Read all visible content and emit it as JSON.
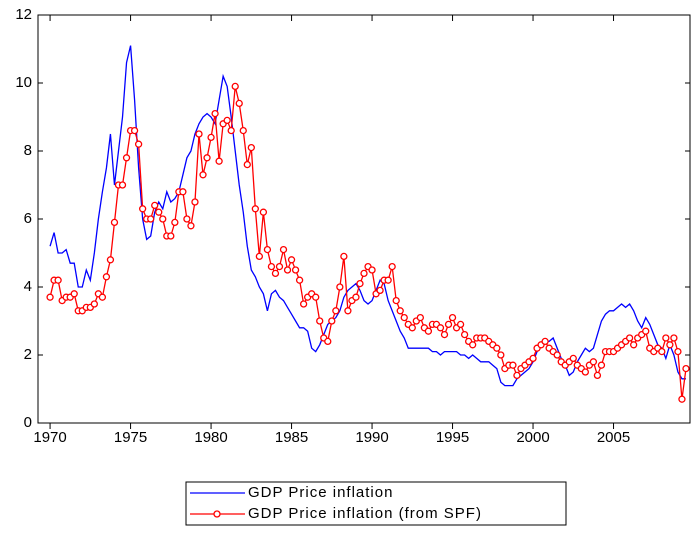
{
  "chart_data": {
    "type": "line",
    "x": [
      1970,
      1970.25,
      1970.5,
      1970.75,
      1971,
      1971.25,
      1971.5,
      1971.75,
      1972,
      1972.25,
      1972.5,
      1972.75,
      1973,
      1973.25,
      1973.5,
      1973.75,
      1974,
      1974.25,
      1974.5,
      1974.75,
      1975,
      1975.25,
      1975.5,
      1975.75,
      1976,
      1976.25,
      1976.5,
      1976.75,
      1977,
      1977.25,
      1977.5,
      1977.75,
      1978,
      1978.25,
      1978.5,
      1978.75,
      1979,
      1979.25,
      1979.5,
      1979.75,
      1980,
      1980.25,
      1980.5,
      1980.75,
      1981,
      1981.25,
      1981.5,
      1981.75,
      1982,
      1982.25,
      1982.5,
      1982.75,
      1983,
      1983.25,
      1983.5,
      1983.75,
      1984,
      1984.25,
      1984.5,
      1984.75,
      1985,
      1985.25,
      1985.5,
      1985.75,
      1986,
      1986.25,
      1986.5,
      1986.75,
      1987,
      1987.25,
      1987.5,
      1987.75,
      1988,
      1988.25,
      1988.5,
      1988.75,
      1989,
      1989.25,
      1989.5,
      1989.75,
      1990,
      1990.25,
      1990.5,
      1990.75,
      1991,
      1991.25,
      1991.5,
      1991.75,
      1992,
      1992.25,
      1992.5,
      1992.75,
      1993,
      1993.25,
      1993.5,
      1993.75,
      1994,
      1994.25,
      1994.5,
      1994.75,
      1995,
      1995.25,
      1995.5,
      1995.75,
      1996,
      1996.25,
      1996.5,
      1996.75,
      1997,
      1997.25,
      1997.5,
      1997.75,
      1998,
      1998.25,
      1998.5,
      1998.75,
      1999,
      1999.25,
      1999.5,
      1999.75,
      2000,
      2000.25,
      2000.5,
      2000.75,
      2001,
      2001.25,
      2001.5,
      2001.75,
      2002,
      2002.25,
      2002.5,
      2002.75,
      2003,
      2003.25,
      2003.5,
      2003.75,
      2004,
      2004.25,
      2004.5,
      2004.75,
      2005,
      2005.25,
      2005.5,
      2005.75,
      2006,
      2006.25,
      2006.5,
      2006.75,
      2007,
      2007.25,
      2007.5,
      2007.75,
      2008,
      2008.25,
      2008.5,
      2008.75,
      2009,
      2009.25,
      2009.5
    ],
    "series": [
      {
        "name": "GDP Price inflation",
        "color": "#0000ff",
        "marker": false,
        "values": [
          5.2,
          5.6,
          5.0,
          5.0,
          5.1,
          4.7,
          4.7,
          4.0,
          4.0,
          4.5,
          4.2,
          5.0,
          6.0,
          6.8,
          7.5,
          8.5,
          7.0,
          8.0,
          9.0,
          10.6,
          11.1,
          9.5,
          7.5,
          6.0,
          5.4,
          5.5,
          6.2,
          6.5,
          6.3,
          6.8,
          6.5,
          6.6,
          6.8,
          7.3,
          7.8,
          8.0,
          8.5,
          8.8,
          9.0,
          9.1,
          9.0,
          8.8,
          9.5,
          10.2,
          9.9,
          9.0,
          8.0,
          7.0,
          6.2,
          5.2,
          4.5,
          4.3,
          4.0,
          3.8,
          3.3,
          3.8,
          3.9,
          3.7,
          3.6,
          3.4,
          3.2,
          3.0,
          2.8,
          2.8,
          2.7,
          2.2,
          2.1,
          2.3,
          2.6,
          2.9,
          3.0,
          3.1,
          3.3,
          3.7,
          3.9,
          4.0,
          4.1,
          3.9,
          3.6,
          3.5,
          3.6,
          3.9,
          4.2,
          4.1,
          3.6,
          3.3,
          3.0,
          2.7,
          2.5,
          2.2,
          2.2,
          2.2,
          2.2,
          2.2,
          2.2,
          2.1,
          2.1,
          2.0,
          2.1,
          2.1,
          2.1,
          2.1,
          2.0,
          2.0,
          1.9,
          2.0,
          1.9,
          1.8,
          1.8,
          1.8,
          1.7,
          1.6,
          1.2,
          1.1,
          1.1,
          1.1,
          1.3,
          1.4,
          1.5,
          1.6,
          1.8,
          2.1,
          2.3,
          2.4,
          2.4,
          2.5,
          2.2,
          1.9,
          1.7,
          1.4,
          1.5,
          1.8,
          2.0,
          2.2,
          2.1,
          2.2,
          2.6,
          3.0,
          3.2,
          3.3,
          3.3,
          3.4,
          3.5,
          3.4,
          3.5,
          3.3,
          3.0,
          2.8,
          3.1,
          2.9,
          2.6,
          2.3,
          2.2,
          1.9,
          2.3,
          2.0,
          1.5,
          1.3,
          1.3
        ]
      },
      {
        "name": "GDP Price inflation (from SPF)",
        "color": "#ff0000",
        "marker": true,
        "values": [
          3.7,
          4.2,
          4.2,
          3.6,
          3.7,
          3.7,
          3.8,
          3.3,
          3.3,
          3.4,
          3.4,
          3.5,
          3.8,
          3.7,
          4.3,
          4.8,
          5.9,
          7.0,
          7.0,
          7.8,
          8.6,
          8.6,
          8.2,
          6.3,
          6.0,
          6.0,
          6.4,
          6.2,
          6.0,
          5.5,
          5.5,
          5.9,
          6.8,
          6.8,
          6.0,
          5.8,
          6.5,
          8.5,
          7.3,
          7.8,
          8.4,
          9.1,
          7.7,
          8.8,
          8.9,
          8.6,
          9.9,
          9.4,
          8.6,
          7.6,
          8.1,
          6.3,
          4.9,
          6.2,
          5.1,
          4.6,
          4.4,
          4.6,
          5.1,
          4.5,
          4.8,
          4.5,
          4.2,
          3.5,
          3.7,
          3.8,
          3.7,
          3.0,
          2.5,
          2.4,
          3.0,
          3.3,
          4.0,
          4.9,
          3.3,
          3.6,
          3.7,
          4.1,
          4.4,
          4.6,
          4.5,
          3.8,
          3.9,
          4.2,
          4.2,
          4.6,
          3.6,
          3.3,
          3.1,
          2.9,
          2.8,
          3.0,
          3.1,
          2.8,
          2.7,
          2.9,
          2.9,
          2.8,
          2.6,
          2.9,
          3.1,
          2.8,
          2.9,
          2.6,
          2.4,
          2.3,
          2.5,
          2.5,
          2.5,
          2.4,
          2.3,
          2.2,
          2.0,
          1.6,
          1.7,
          1.7,
          1.4,
          1.6,
          1.7,
          1.8,
          1.9,
          2.2,
          2.3,
          2.4,
          2.2,
          2.1,
          2.0,
          1.8,
          1.7,
          1.8,
          1.9,
          1.7,
          1.6,
          1.5,
          1.7,
          1.8,
          1.4,
          1.7,
          2.1,
          2.1,
          2.1,
          2.2,
          2.3,
          2.4,
          2.5,
          2.3,
          2.5,
          2.6,
          2.7,
          2.2,
          2.1,
          2.2,
          2.1,
          2.5,
          2.3,
          2.5,
          2.1,
          0.7,
          1.6
        ]
      }
    ],
    "xlim": [
      1969.25,
      2009.75
    ],
    "xticks": [
      1970,
      1975,
      1980,
      1985,
      1990,
      1995,
      2000,
      2005
    ],
    "ylim": [
      0,
      12
    ],
    "yticks": [
      0,
      2,
      4,
      6,
      8,
      10,
      12
    ],
    "grid": false,
    "legend": "bottom"
  }
}
